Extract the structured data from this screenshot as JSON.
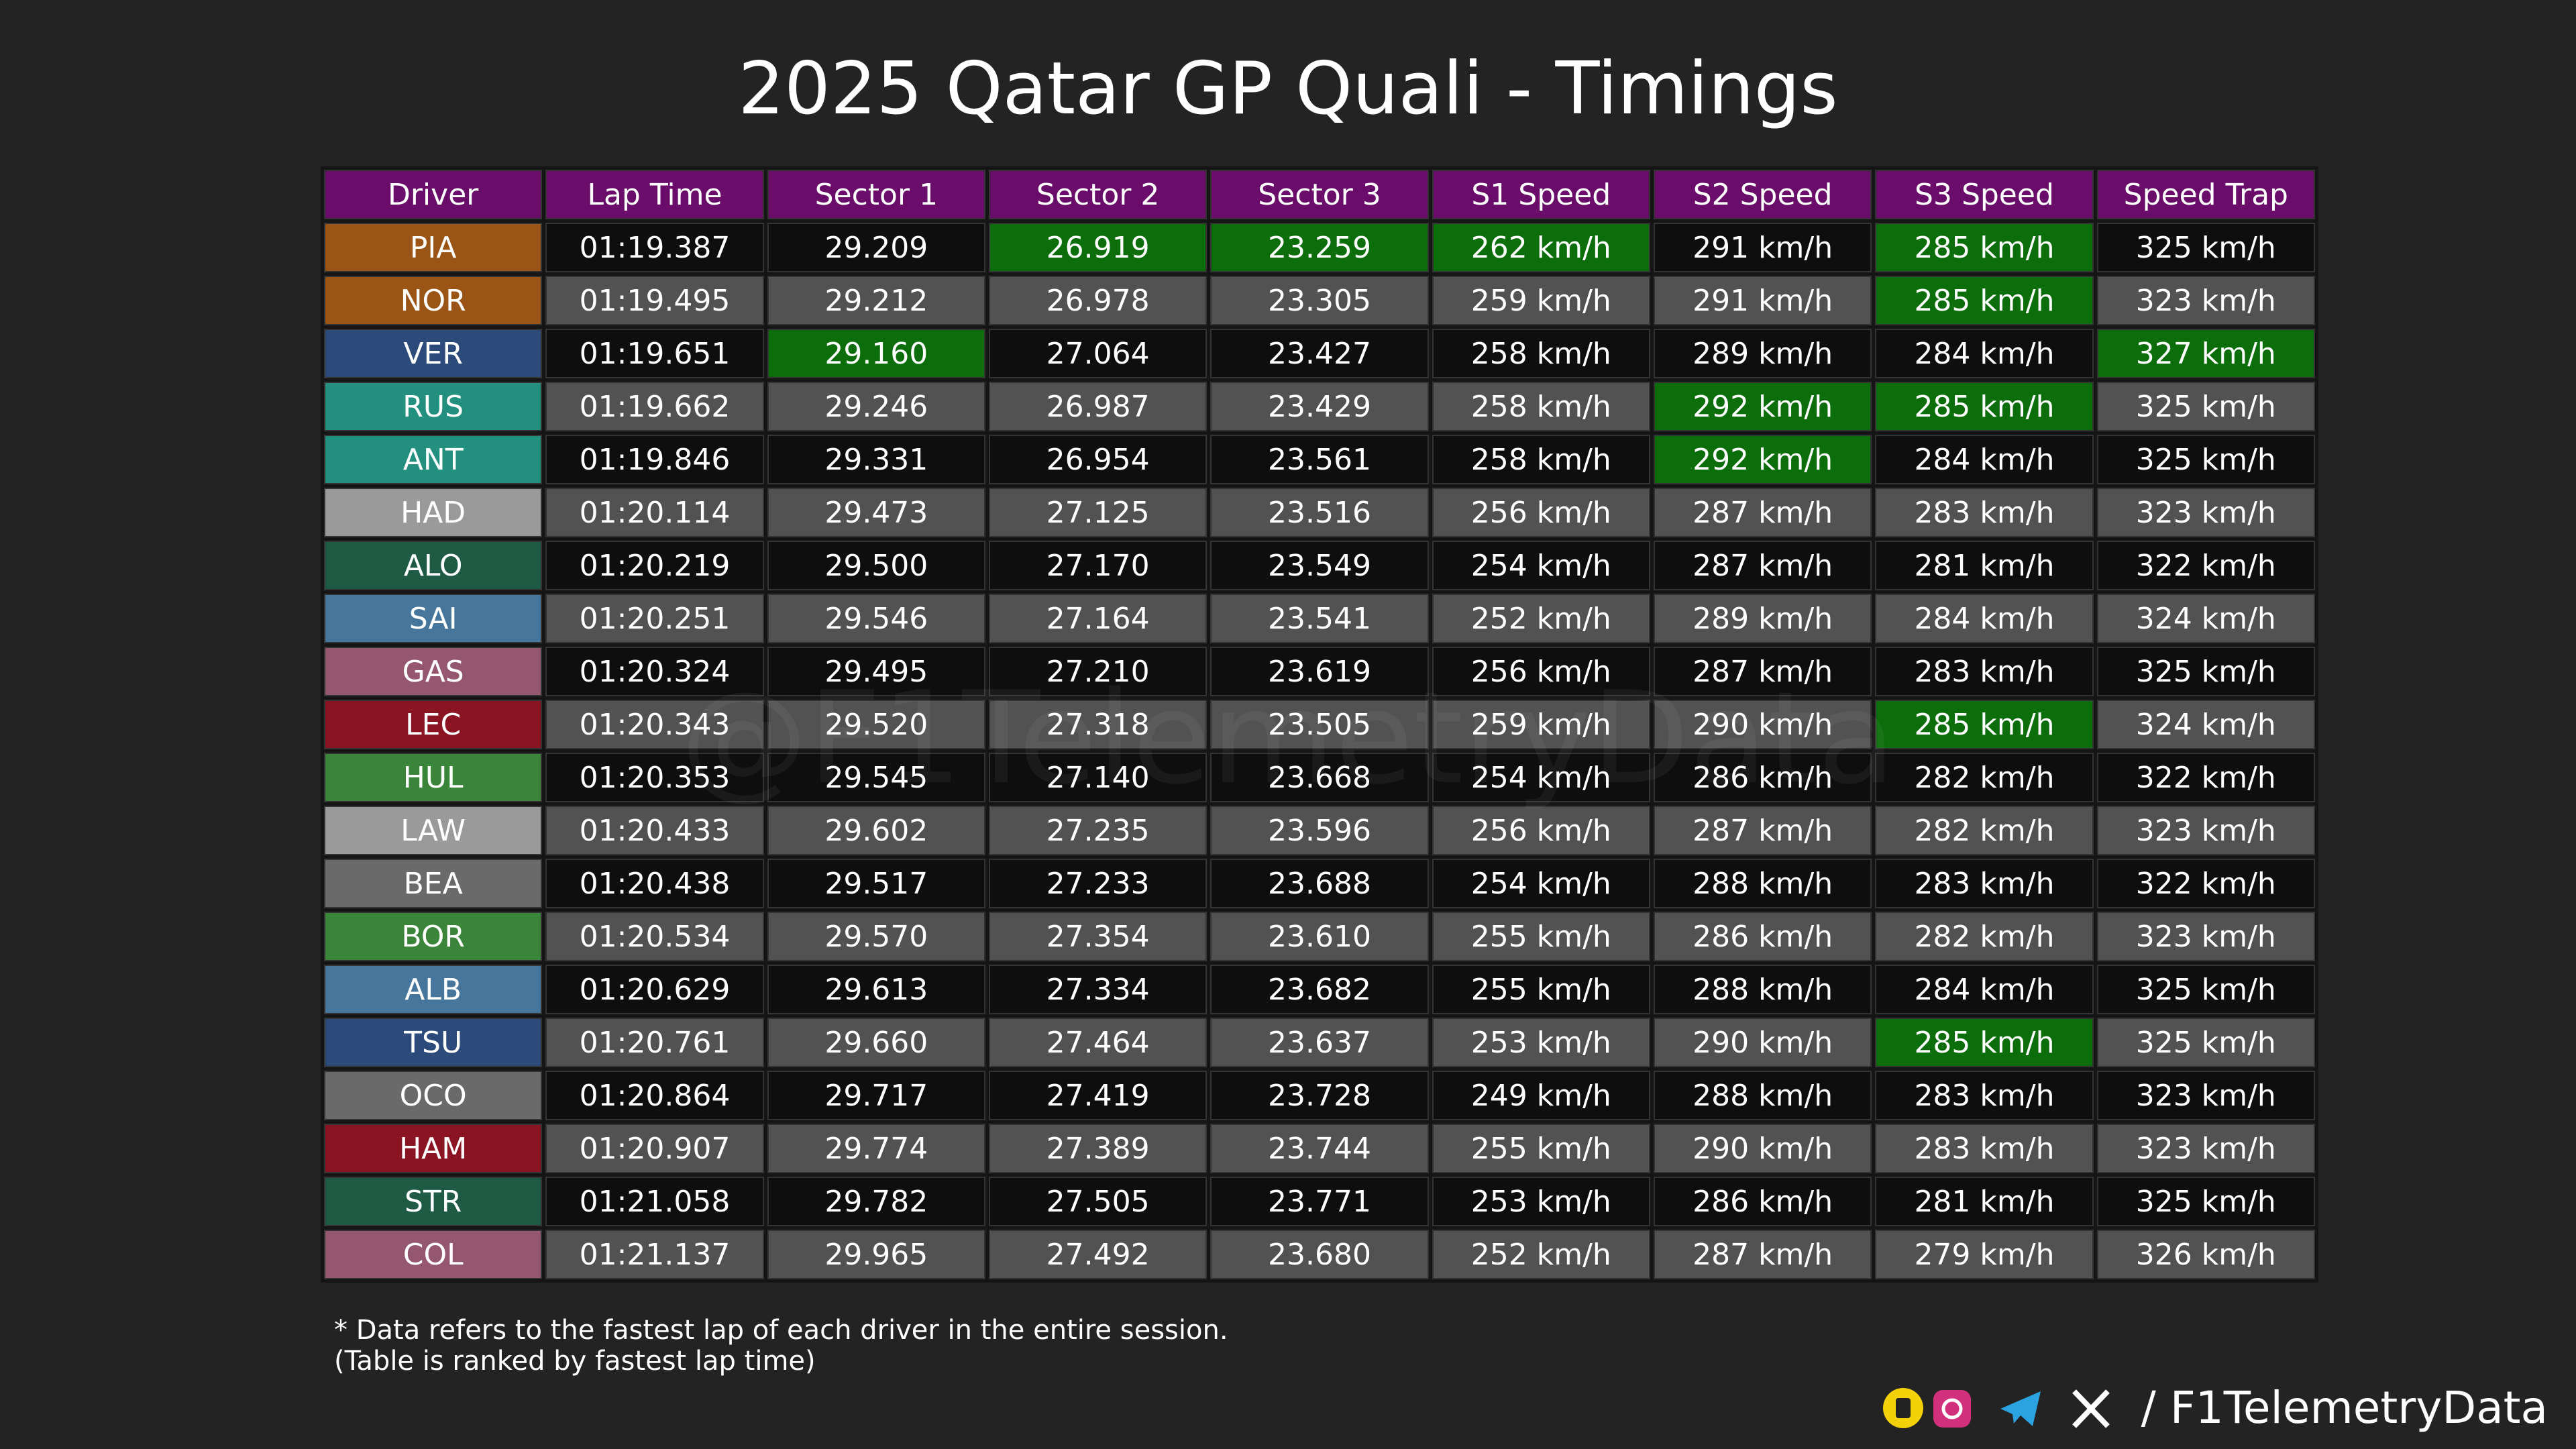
{
  "header": {
    "title": "2025 Qatar GP Quali - Timings"
  },
  "table": {
    "columns": [
      "Driver",
      "Lap Time",
      "Sector 1",
      "Sector 2",
      "Sector 3",
      "S1 Speed",
      "S2 Speed",
      "S3 Speed",
      "Speed Trap"
    ],
    "header_color": "#6a0d6a",
    "highlight_color": "#0b6e0b",
    "rows": [
      {
        "color": "#9a5516",
        "fastest": [
          3,
          4,
          5,
          7
        ],
        "cells": [
          "PIA",
          "01:19.387",
          "29.209",
          "26.919",
          "23.259",
          "262 km/h",
          "291 km/h",
          "285 km/h",
          "325 km/h"
        ]
      },
      {
        "color": "#9a5516",
        "fastest": [
          7
        ],
        "cells": [
          "NOR",
          "01:19.495",
          "29.212",
          "26.978",
          "23.305",
          "259 km/h",
          "291 km/h",
          "285 km/h",
          "323 km/h"
        ]
      },
      {
        "color": "#2c4a7a",
        "fastest": [
          2,
          8
        ],
        "cells": [
          "VER",
          "01:19.651",
          "29.160",
          "27.064",
          "23.427",
          "258 km/h",
          "289 km/h",
          "284 km/h",
          "327 km/h"
        ]
      },
      {
        "color": "#23907f",
        "fastest": [
          6,
          7
        ],
        "cells": [
          "RUS",
          "01:19.662",
          "29.246",
          "26.987",
          "23.429",
          "258 km/h",
          "292 km/h",
          "285 km/h",
          "325 km/h"
        ]
      },
      {
        "color": "#23907f",
        "fastest": [
          6
        ],
        "cells": [
          "ANT",
          "01:19.846",
          "29.331",
          "26.954",
          "23.561",
          "258 km/h",
          "292 km/h",
          "284 km/h",
          "325 km/h"
        ]
      },
      {
        "color": "#9a9a9a",
        "fastest": [],
        "cells": [
          "HAD",
          "01:20.114",
          "29.473",
          "27.125",
          "23.516",
          "256 km/h",
          "287 km/h",
          "283 km/h",
          "323 km/h"
        ]
      },
      {
        "color": "#1f5a45",
        "fastest": [],
        "cells": [
          "ALO",
          "01:20.219",
          "29.500",
          "27.170",
          "23.549",
          "254 km/h",
          "287 km/h",
          "281 km/h",
          "322 km/h"
        ]
      },
      {
        "color": "#46769b",
        "fastest": [],
        "cells": [
          "SAI",
          "01:20.251",
          "29.546",
          "27.164",
          "23.541",
          "252 km/h",
          "289 km/h",
          "284 km/h",
          "324 km/h"
        ]
      },
      {
        "color": "#94576f",
        "fastest": [],
        "cells": [
          "GAS",
          "01:20.324",
          "29.495",
          "27.210",
          "23.619",
          "256 km/h",
          "287 km/h",
          "283 km/h",
          "325 km/h"
        ]
      },
      {
        "color": "#8b1423",
        "fastest": [
          7
        ],
        "cells": [
          "LEC",
          "01:20.343",
          "29.520",
          "27.318",
          "23.505",
          "259 km/h",
          "290 km/h",
          "285 km/h",
          "324 km/h"
        ]
      },
      {
        "color": "#3a853a",
        "fastest": [],
        "cells": [
          "HUL",
          "01:20.353",
          "29.545",
          "27.140",
          "23.668",
          "254 km/h",
          "286 km/h",
          "282 km/h",
          "322 km/h"
        ]
      },
      {
        "color": "#9a9a9a",
        "fastest": [],
        "cells": [
          "LAW",
          "01:20.433",
          "29.602",
          "27.235",
          "23.596",
          "256 km/h",
          "287 km/h",
          "282 km/h",
          "323 km/h"
        ]
      },
      {
        "color": "#6a6a6a",
        "fastest": [],
        "cells": [
          "BEA",
          "01:20.438",
          "29.517",
          "27.233",
          "23.688",
          "254 km/h",
          "288 km/h",
          "283 km/h",
          "322 km/h"
        ]
      },
      {
        "color": "#3a853a",
        "fastest": [],
        "cells": [
          "BOR",
          "01:20.534",
          "29.570",
          "27.354",
          "23.610",
          "255 km/h",
          "286 km/h",
          "282 km/h",
          "323 km/h"
        ]
      },
      {
        "color": "#46769b",
        "fastest": [],
        "cells": [
          "ALB",
          "01:20.629",
          "29.613",
          "27.334",
          "23.682",
          "255 km/h",
          "288 km/h",
          "284 km/h",
          "325 km/h"
        ]
      },
      {
        "color": "#2c4a7a",
        "fastest": [
          7
        ],
        "cells": [
          "TSU",
          "01:20.761",
          "29.660",
          "27.464",
          "23.637",
          "253 km/h",
          "290 km/h",
          "285 km/h",
          "325 km/h"
        ]
      },
      {
        "color": "#6a6a6a",
        "fastest": [],
        "cells": [
          "OCO",
          "01:20.864",
          "29.717",
          "27.419",
          "23.728",
          "249 km/h",
          "288 km/h",
          "283 km/h",
          "323 km/h"
        ]
      },
      {
        "color": "#8b1423",
        "fastest": [],
        "cells": [
          "HAM",
          "01:20.907",
          "29.774",
          "27.389",
          "23.744",
          "255 km/h",
          "290 km/h",
          "283 km/h",
          "323 km/h"
        ]
      },
      {
        "color": "#1f5a45",
        "fastest": [],
        "cells": [
          "STR",
          "01:21.058",
          "29.782",
          "27.505",
          "23.771",
          "253 km/h",
          "286 km/h",
          "281 km/h",
          "325 km/h"
        ]
      },
      {
        "color": "#94576f",
        "fastest": [],
        "cells": [
          "COL",
          "01:21.137",
          "29.965",
          "27.492",
          "23.680",
          "252 km/h",
          "287 km/h",
          "279 km/h",
          "326 km/h"
        ]
      }
    ]
  },
  "watermark": "@F1TelemetryData",
  "notes": [
    "* Data refers to the fastest lap of each driver in the entire session.",
    "(Table is ranked by fastest lap time)"
  ],
  "footer": {
    "handle": "/ F1TelemetryData"
  }
}
